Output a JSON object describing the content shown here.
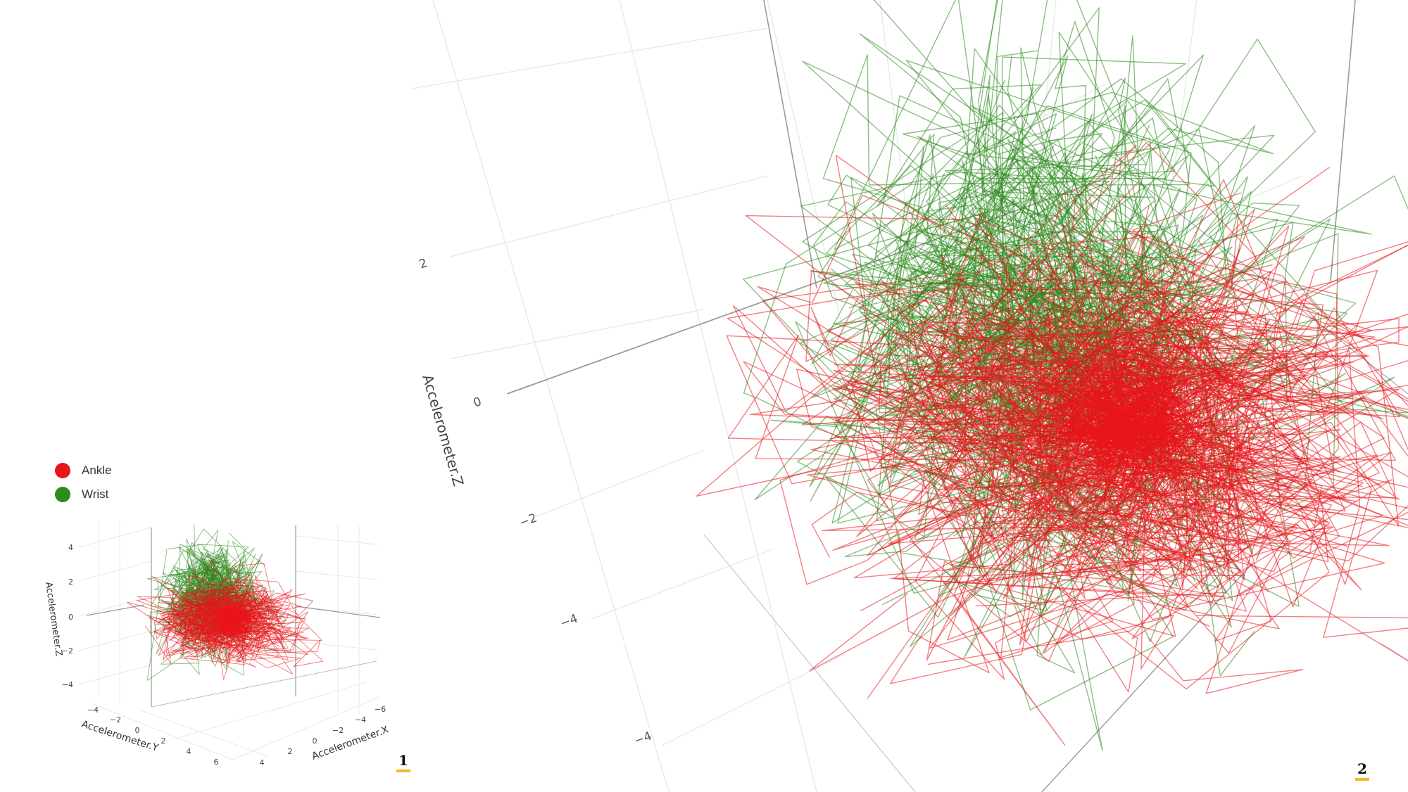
{
  "legend": {
    "items": [
      {
        "label": "Ankle",
        "color": "#e8151b"
      },
      {
        "label": "Wrist",
        "color": "#2e8b1e"
      }
    ]
  },
  "panels": [
    {
      "number": "1"
    },
    {
      "number": "2"
    }
  ],
  "accent_color": "#f6b924",
  "chart_data": [
    {
      "type": "scatter",
      "style": "3d-line",
      "xlabel": "Accelerometer.X",
      "ylabel": "Accelerometer.Y",
      "zlabel": "Accelerometer.Z",
      "x_ticks": [
        "−6",
        "−4",
        "−2",
        "0",
        "2",
        "4"
      ],
      "y_ticks": [
        "−4",
        "−2",
        "0",
        "2",
        "4",
        "6"
      ],
      "z_ticks": [
        "−4",
        "−2",
        "0",
        "2",
        "4"
      ],
      "xlim": [
        -6,
        4
      ],
      "ylim": [
        -4,
        6
      ],
      "zlim": [
        -5,
        5
      ],
      "grid": true,
      "legend_position": "top-left",
      "series": [
        {
          "name": "Ankle",
          "color": "#e8151b",
          "center": [
            0.2,
            0.5,
            -0.3
          ],
          "spread": [
            2.6,
            2.6,
            1.1
          ]
        },
        {
          "name": "Wrist",
          "color": "#2e8b1e",
          "center": [
            -0.4,
            0.0,
            0.6
          ],
          "spread": [
            1.4,
            1.4,
            1.8
          ]
        }
      ]
    },
    {
      "type": "scatter",
      "style": "3d-line",
      "zlabel": "Accelerometer.Z",
      "z_ticks": [
        "2",
        "0",
        "−2",
        "−4",
        "−4"
      ],
      "grid": true,
      "series": [
        {
          "name": "Ankle",
          "color": "#e8151b",
          "center": [
            0.2,
            0.5,
            -0.3
          ],
          "spread": [
            2.6,
            2.6,
            1.1
          ]
        },
        {
          "name": "Wrist",
          "color": "#2e8b1e",
          "center": [
            -0.4,
            0.0,
            0.6
          ],
          "spread": [
            1.4,
            1.4,
            1.8
          ]
        }
      ]
    }
  ]
}
